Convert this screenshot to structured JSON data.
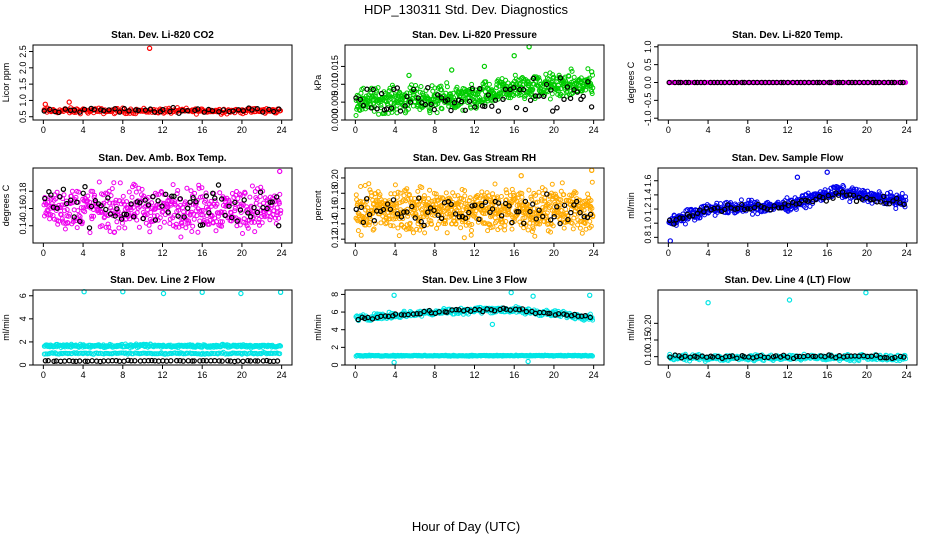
{
  "title": "HDP_130311  Std. Dev. Diagnostics",
  "xlabel": "Hour of Day (UTC)",
  "chart_data": [
    {
      "type": "scatter",
      "title": "Stan. Dev. Li-820 CO2",
      "ylabel": "Licor ppm",
      "xlim": [
        0,
        24
      ],
      "ylim": [
        0.4,
        2.7
      ],
      "xticks": [
        "0",
        "4",
        "8",
        "12",
        "16",
        "20",
        "24"
      ],
      "yticks": [
        "0.5",
        "1.0",
        "1.5",
        "2.0",
        "2.5"
      ],
      "series": [
        {
          "name": "red",
          "color": "#ff0000",
          "base": 0.68,
          "spread": 0.06,
          "trend": [],
          "count": 260,
          "density": "dense",
          "outliers": [
            {
              "x": 10.7,
              "y": 2.6
            },
            {
              "x": 2.6,
              "y": 0.95
            },
            {
              "x": 0.2,
              "y": 0.88
            }
          ]
        },
        {
          "name": "black",
          "color": "#000000",
          "base": 0.7,
          "spread": 0.05,
          "trend": [],
          "count": 48,
          "density": "sparse",
          "outliers": []
        }
      ]
    },
    {
      "type": "scatter",
      "title": "Stan. Dev. Li-820 Pressure",
      "ylabel": "kPa",
      "xlim": [
        0,
        24
      ],
      "ylim": [
        0,
        0.021
      ],
      "xticks": [
        "0",
        "4",
        "8",
        "12",
        "16",
        "20",
        "24"
      ],
      "yticks": [
        "0.000",
        "0.005",
        "0.010",
        "0.015"
      ],
      "series": [
        {
          "name": "green",
          "color": "#00cc00",
          "base": 0.0055,
          "spread": 0.0025,
          "trend": [
            [
              0,
              0.0055
            ],
            [
              12,
              0.006
            ],
            [
              16,
              0.009
            ],
            [
              24,
              0.01
            ]
          ],
          "count": 620,
          "density": "dense",
          "outliers": [
            {
              "x": 17.5,
              "y": 0.0205
            },
            {
              "x": 16,
              "y": 0.018
            },
            {
              "x": 13,
              "y": 0.015
            },
            {
              "x": 9.7,
              "y": 0.014
            },
            {
              "x": 23.8,
              "y": 0.0135
            },
            {
              "x": 5.4,
              "y": 0.0125
            }
          ]
        },
        {
          "name": "black",
          "color": "#000000",
          "base": 0.0055,
          "spread": 0.003,
          "trend": [
            [
              0,
              0.0055
            ],
            [
              12,
              0.006
            ],
            [
              16,
              0.007
            ],
            [
              24,
              0.007
            ]
          ],
          "count": 70,
          "density": "sparse",
          "outliers": []
        }
      ]
    },
    {
      "type": "scatter",
      "title": "Stan. Dev. Li-820 Temp.",
      "ylabel": "degrees C",
      "xlim": [
        0,
        24
      ],
      "ylim": [
        -1.05,
        1.05
      ],
      "xticks": [
        "0",
        "4",
        "8",
        "12",
        "16",
        "20",
        "24"
      ],
      "yticks": [
        "-1.0",
        "-0.5",
        "0.0",
        "0.5",
        "1.0"
      ],
      "series": [
        {
          "name": "magenta",
          "color": "#ee00ee",
          "base": 0,
          "spread": 0,
          "trend": [],
          "count": 280,
          "density": "dense",
          "outliers": []
        },
        {
          "name": "black",
          "color": "#000000",
          "base": 0,
          "spread": 0,
          "trend": [],
          "count": 60,
          "density": "sparse",
          "outliers": []
        }
      ]
    },
    {
      "type": "scatter",
      "title": "Stan. Dev. Amb. Box Temp.",
      "ylabel": "degrees C",
      "xlim": [
        0,
        24
      ],
      "ylim": [
        0.12,
        0.207
      ],
      "xticks": [
        "0",
        "4",
        "8",
        "12",
        "16",
        "20",
        "24"
      ],
      "yticks": [
        "0.14",
        "0.16",
        "0.18"
      ],
      "series": [
        {
          "name": "magenta",
          "color": "#ee00ee",
          "base": 0.16,
          "spread": 0.018,
          "trend": [],
          "count": 520,
          "density": "dense",
          "outliers": [
            {
              "x": 23.8,
              "y": 0.203
            }
          ]
        },
        {
          "name": "black",
          "color": "#000000",
          "base": 0.16,
          "spread": 0.015,
          "trend": [],
          "count": 75,
          "density": "sparse",
          "outliers": []
        }
      ]
    },
    {
      "type": "scatter",
      "title": "Stan. Dev. Gas Stream RH",
      "ylabel": "percent",
      "xlim": [
        0,
        24
      ],
      "ylim": [
        0.115,
        0.213
      ],
      "xticks": [
        "0",
        "4",
        "8",
        "12",
        "16",
        "20",
        "24"
      ],
      "yticks": [
        "0.12",
        "0.14",
        "0.16",
        "0.18",
        "0.20"
      ],
      "series": [
        {
          "name": "orange",
          "color": "#ffaa00",
          "base": 0.158,
          "spread": 0.02,
          "trend": [],
          "count": 760,
          "density": "dense",
          "outliers": [
            {
              "x": 23.8,
              "y": 0.21
            },
            {
              "x": 16.7,
              "y": 0.203
            }
          ]
        },
        {
          "name": "black",
          "color": "#000000",
          "base": 0.155,
          "spread": 0.015,
          "trend": [],
          "count": 70,
          "density": "sparse",
          "outliers": []
        }
      ]
    },
    {
      "type": "scatter",
      "title": "Stan. Dev. Sample Flow",
      "ylabel": "ml/min",
      "xlim": [
        0,
        24
      ],
      "ylim": [
        0.72,
        1.78
      ],
      "xticks": [
        "0",
        "4",
        "8",
        "12",
        "16",
        "20",
        "24"
      ],
      "yticks": [
        "0.8",
        "1.0",
        "1.2",
        "1.4",
        "1.6"
      ],
      "series": [
        {
          "name": "blue",
          "color": "#0000ee",
          "base": 1.2,
          "spread": 0.06,
          "trend": [
            [
              0,
              1.02
            ],
            [
              4,
              1.2
            ],
            [
              12,
              1.25
            ],
            [
              17,
              1.45
            ],
            [
              24,
              1.3
            ]
          ],
          "count": 520,
          "density": "dense",
          "outliers": [
            {
              "x": 13,
              "y": 1.65
            },
            {
              "x": 16,
              "y": 1.72
            },
            {
              "x": 0.2,
              "y": 0.75
            }
          ]
        },
        {
          "name": "black",
          "color": "#000000",
          "base": 1.2,
          "spread": 0.04,
          "trend": [
            [
              0,
              1.0
            ],
            [
              4,
              1.2
            ],
            [
              12,
              1.25
            ],
            [
              17,
              1.4
            ],
            [
              24,
              1.28
            ]
          ],
          "count": 70,
          "density": "sparse",
          "outliers": []
        }
      ]
    },
    {
      "type": "scatter",
      "title": "Stan. Dev. Line 2 Flow",
      "ylabel": "ml/min",
      "xlim": [
        0,
        24
      ],
      "ylim": [
        0,
        6.5
      ],
      "xticks": [
        "0",
        "4",
        "8",
        "12",
        "16",
        "20",
        "24"
      ],
      "yticks": [
        "0",
        "2",
        "4",
        "6"
      ],
      "series": [
        {
          "name": "cyan",
          "color": "#00e5e5",
          "base": 1.65,
          "spread": 0.1,
          "trend": [],
          "count": 320,
          "density": "dense",
          "outliers": [
            {
              "x": 4.1,
              "y": 6.35
            },
            {
              "x": 8.0,
              "y": 6.35
            },
            {
              "x": 12.1,
              "y": 6.2
            },
            {
              "x": 16.0,
              "y": 6.3
            },
            {
              "x": 19.9,
              "y": 6.2
            },
            {
              "x": 23.9,
              "y": 6.3
            }
          ]
        },
        {
          "name": "cyan-low",
          "color": "#00e5e5",
          "base": 1.0,
          "spread": 0.05,
          "trend": [],
          "count": 160,
          "density": "dense",
          "outliers": []
        },
        {
          "name": "black",
          "color": "#000000",
          "base": 0.35,
          "spread": 0.03,
          "trend": [],
          "count": 60,
          "density": "sparse",
          "outliers": []
        }
      ]
    },
    {
      "type": "scatter",
      "title": "Stan. Dev. Line 3 Flow",
      "ylabel": "ml/min",
      "xlim": [
        0,
        24
      ],
      "ylim": [
        0,
        8.5
      ],
      "xticks": [
        "0",
        "4",
        "8",
        "12",
        "16",
        "20",
        "24"
      ],
      "yticks": [
        "0",
        "2",
        "4",
        "6",
        "8"
      ],
      "series": [
        {
          "name": "cyan",
          "color": "#00e5e5",
          "base": 5.8,
          "spread": 0.25,
          "trend": [
            [
              0,
              5.3
            ],
            [
              8,
              6.0
            ],
            [
              14,
              6.3
            ],
            [
              16,
              6.2
            ],
            [
              24,
              5.4
            ]
          ],
          "count": 380,
          "density": "dense",
          "outliers": [
            {
              "x": 3.9,
              "y": 7.9
            },
            {
              "x": 15.7,
              "y": 8.2
            },
            {
              "x": 23.6,
              "y": 7.9
            },
            {
              "x": 17.9,
              "y": 7.8
            },
            {
              "x": 13.8,
              "y": 4.6
            }
          ]
        },
        {
          "name": "cyan-low",
          "color": "#00e5e5",
          "base": 1.05,
          "spread": 0.04,
          "trend": [],
          "count": 300,
          "density": "dense",
          "outliers": [
            {
              "x": 3.9,
              "y": 0.3
            },
            {
              "x": 17.4,
              "y": 0.4
            }
          ]
        },
        {
          "name": "black",
          "color": "#000000",
          "base": 5.8,
          "spread": 0.15,
          "trend": [
            [
              0,
              5.3
            ],
            [
              8,
              6.0
            ],
            [
              14,
              6.3
            ],
            [
              16,
              6.2
            ],
            [
              24,
              5.4
            ]
          ],
          "count": 60,
          "density": "sparse",
          "outliers": []
        }
      ]
    },
    {
      "type": "scatter",
      "title": "Stan. Dev. Line 4 (LT) Flow",
      "ylabel": "ml/min",
      "xlim": [
        0,
        24
      ],
      "ylim": [
        0.075,
        0.3
      ],
      "xticks": [
        "0",
        "4",
        "8",
        "12",
        "16",
        "20",
        "24"
      ],
      "yticks": [
        "0.10",
        "0.15",
        "0.20"
      ],
      "series": [
        {
          "name": "cyan",
          "color": "#00e5e5",
          "base": 0.097,
          "spread": 0.006,
          "trend": [],
          "count": 360,
          "density": "dense",
          "outliers": [
            {
              "x": 4.0,
              "y": 0.262
            },
            {
              "x": 12.2,
              "y": 0.27
            },
            {
              "x": 19.9,
              "y": 0.292
            }
          ]
        },
        {
          "name": "black",
          "color": "#000000",
          "base": 0.1,
          "spread": 0.004,
          "trend": [],
          "count": 60,
          "density": "sparse",
          "outliers": []
        }
      ]
    }
  ]
}
